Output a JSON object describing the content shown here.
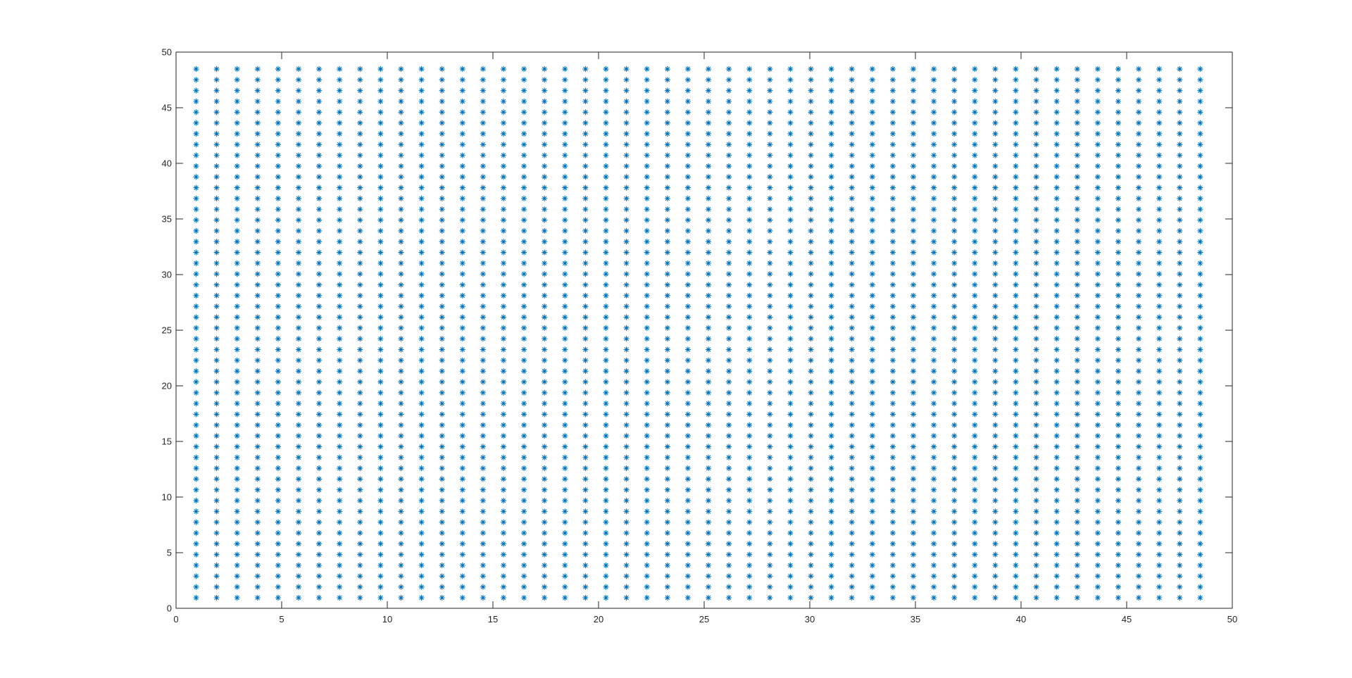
{
  "figure": {
    "background_color": "#ffffff"
  },
  "chart_data": {
    "type": "scatter",
    "title": "",
    "xlabel": "",
    "ylabel": "",
    "xlim": [
      0,
      50
    ],
    "ylim": [
      0,
      50
    ],
    "xticks": [
      "0",
      "5",
      "10",
      "15",
      "20",
      "25",
      "30",
      "35",
      "40",
      "45",
      "50"
    ],
    "yticks": [
      "0",
      "5",
      "10",
      "15",
      "20",
      "25",
      "30",
      "35",
      "40",
      "45",
      "50"
    ],
    "grid": false,
    "legend": "none",
    "marker": "asterisk",
    "marker_color": "#0072BD",
    "axis_color": "#262626",
    "series": [
      {
        "x": [
          0.95,
          1.92,
          2.89,
          3.86,
          4.83,
          5.8,
          6.77,
          7.74,
          8.71,
          9.68,
          10.65,
          11.62,
          12.59,
          13.56,
          14.53,
          15.5,
          16.47,
          17.44,
          18.41,
          19.38,
          20.35,
          21.32,
          22.29,
          23.26,
          24.23,
          25.2,
          26.17,
          27.14,
          28.11,
          29.08,
          30.05,
          31.02,
          31.99,
          32.96,
          33.93,
          34.9,
          35.87,
          36.84,
          37.81,
          38.78,
          39.75,
          40.72,
          41.69,
          42.66,
          43.63,
          44.6,
          45.57,
          46.54,
          47.51,
          48.48
        ],
        "y": [
          0.95,
          1.92,
          2.89,
          3.86,
          4.83,
          5.8,
          6.77,
          7.74,
          8.71,
          9.68,
          10.65,
          11.62,
          12.59,
          13.56,
          14.53,
          15.5,
          16.47,
          17.44,
          18.41,
          19.38,
          20.35,
          21.32,
          22.29,
          23.26,
          24.23,
          25.2,
          26.17,
          27.14,
          28.11,
          29.08,
          30.05,
          31.02,
          31.99,
          32.96,
          33.93,
          34.9,
          35.87,
          36.84,
          37.81,
          38.78,
          39.75,
          40.72,
          41.69,
          42.66,
          43.63,
          44.6,
          45.57,
          46.54,
          47.51,
          48.48
        ],
        "layout": "full grid of every x value paired with every y value"
      }
    ]
  }
}
